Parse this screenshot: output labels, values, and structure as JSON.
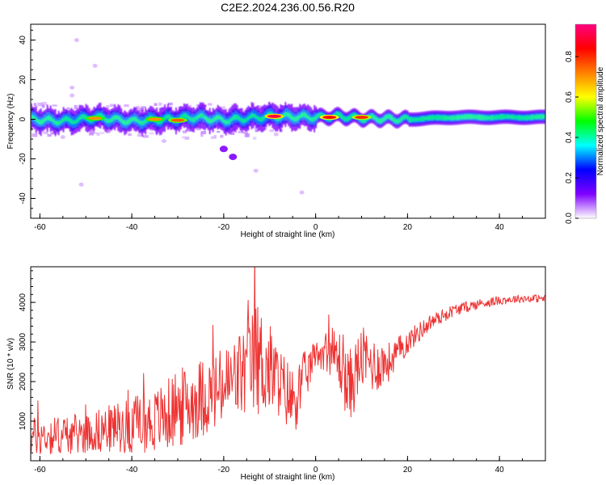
{
  "figure": {
    "title": "C2E2.2024.236.00.56.R20"
  },
  "chart_data": [
    {
      "type": "heatmap",
      "title": "C2E2.2024.236.00.56.R20",
      "xlabel": "Height of straight line (km)",
      "ylabel": "Frequency (Hz)",
      "xlim": [
        -62,
        50
      ],
      "ylim": [
        -50,
        48
      ],
      "x_ticks": [
        "-60",
        "-40",
        "-20",
        "0",
        "20",
        "40"
      ],
      "y_ticks": [
        "-40",
        "-20",
        "0",
        "20",
        "40"
      ],
      "colorbar": {
        "label": "Normalized spectral amplitude",
        "range": [
          0,
          0.96
        ],
        "ticks": [
          "0.0",
          "0.2",
          "0.4",
          "0.6",
          "0.8"
        ],
        "colors": [
          "#ffffff",
          "#8000ff",
          "#0000ff",
          "#00ffff",
          "#00ff00",
          "#ffff00",
          "#ff8000",
          "#ff0000",
          "#ff0080"
        ]
      },
      "band": {
        "center_hz": [
          {
            "x": -62,
            "f": 0.0
          },
          {
            "x": -55,
            "f": -1.0
          },
          {
            "x": -48,
            "f": 1.0
          },
          {
            "x": -40,
            "f": -1.0
          },
          {
            "x": -33,
            "f": 0.0
          },
          {
            "x": -26,
            "f": 1.0
          },
          {
            "x": -20,
            "f": -0.5
          },
          {
            "x": -10,
            "f": 1.5
          },
          {
            "x": 0,
            "f": 1.0
          },
          {
            "x": 5,
            "f": 1.5
          },
          {
            "x": 10,
            "f": 0.5
          },
          {
            "x": 20,
            "f": 0.0
          },
          {
            "x": 30,
            "f": 1.0
          },
          {
            "x": 40,
            "f": 1.0
          },
          {
            "x": 50,
            "f": 1.0
          }
        ],
        "hotspots": [
          {
            "x": -9,
            "f": 1.5,
            "amp": 0.9
          },
          {
            "x": 3,
            "f": 1.0,
            "amp": 0.85
          },
          {
            "x": 10,
            "f": 1.0,
            "amp": 0.8
          },
          {
            "x": -30,
            "f": -0.5,
            "amp": 0.75
          },
          {
            "x": -48,
            "f": 0.5,
            "amp": 0.7
          },
          {
            "x": -35,
            "f": 0.0,
            "amp": 0.7
          }
        ],
        "outliers": [
          {
            "x": -20,
            "f": -15.0
          },
          {
            "x": -18,
            "f": -19.0
          },
          {
            "x": -33,
            "f": -11.0
          },
          {
            "x": -45,
            "f": -6.0
          },
          {
            "x": -55,
            "f": -9.0
          },
          {
            "x": -52,
            "f": 40.0
          },
          {
            "x": -48,
            "f": 27.0
          },
          {
            "x": -53,
            "f": 16.0
          },
          {
            "x": -53,
            "f": 12.0
          },
          {
            "x": -51,
            "f": -33.0
          },
          {
            "x": -13,
            "f": -26.0
          },
          {
            "x": -3,
            "f": -37.0
          }
        ]
      }
    },
    {
      "type": "line",
      "xlabel": "Height of straight line (km)",
      "ylabel": "SNR (10 * v/v)",
      "xlim": [
        -62,
        50
      ],
      "ylim": [
        0,
        4900
      ],
      "x_ticks": [
        "-60",
        "-40",
        "-20",
        "0",
        "20",
        "40"
      ],
      "y_ticks": [
        "1000",
        "2000",
        "3000",
        "4000"
      ],
      "color": "#ee3333",
      "x": [
        -62,
        -55,
        -50,
        -45,
        -40,
        -35,
        -30,
        -25,
        -22,
        -18,
        -14,
        -13,
        -10,
        -8,
        -5,
        -3,
        0,
        3,
        6,
        7,
        8,
        10,
        13,
        16,
        20,
        25,
        30,
        35,
        40,
        45,
        50
      ],
      "trend": [
        600,
        650,
        700,
        800,
        900,
        1000,
        1300,
        1600,
        1700,
        2000,
        2400,
        2600,
        2300,
        2000,
        1500,
        1900,
        2700,
        2800,
        2400,
        1800,
        2000,
        2600,
        2400,
        2500,
        3000,
        3500,
        3800,
        3950,
        4050,
        4100,
        4100
      ],
      "amplitude": [
        500,
        500,
        500,
        600,
        700,
        800,
        1000,
        1000,
        1000,
        1100,
        1300,
        1500,
        1200,
        900,
        900,
        800,
        300,
        600,
        900,
        1000,
        900,
        800,
        700,
        500,
        300,
        200,
        150,
        130,
        110,
        100,
        100
      ]
    }
  ]
}
